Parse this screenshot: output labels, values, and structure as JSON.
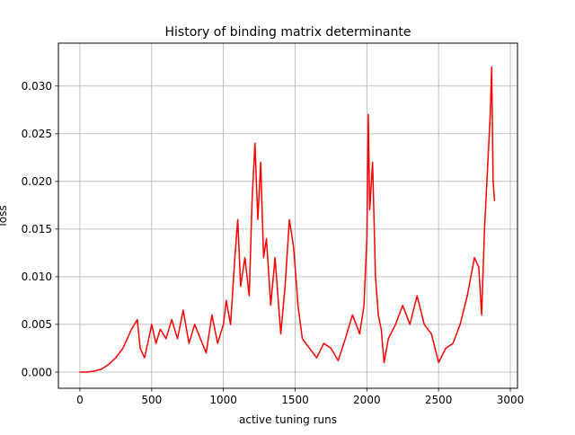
{
  "chart_data": {
    "type": "line",
    "title": "History of binding matrix determinante",
    "xlabel": "active tuning runs",
    "ylabel": "loss",
    "xlim": [
      -150,
      3050
    ],
    "ylim": [
      -0.0017,
      0.0345
    ],
    "xticks": [
      0,
      500,
      1000,
      1500,
      2000,
      2500,
      3000
    ],
    "xtick_labels": [
      "0",
      "500",
      "1000",
      "1500",
      "2000",
      "2500",
      "3000"
    ],
    "yticks": [
      0.0,
      0.005,
      0.01,
      0.015,
      0.02,
      0.025,
      0.03
    ],
    "ytick_labels": [
      "0.000",
      "0.005",
      "0.010",
      "0.015",
      "0.020",
      "0.025",
      "0.030"
    ],
    "grid": true,
    "legend": false,
    "series": [
      {
        "color": "#ff0000",
        "x": [
          0,
          50,
          100,
          150,
          200,
          250,
          300,
          330,
          360,
          400,
          420,
          450,
          480,
          500,
          530,
          560,
          600,
          640,
          680,
          720,
          760,
          800,
          840,
          880,
          920,
          960,
          1000,
          1020,
          1050,
          1080,
          1100,
          1120,
          1150,
          1180,
          1200,
          1220,
          1240,
          1260,
          1280,
          1300,
          1330,
          1360,
          1400,
          1430,
          1460,
          1490,
          1520,
          1550,
          1600,
          1650,
          1700,
          1750,
          1800,
          1850,
          1900,
          1950,
          1980,
          2000,
          2010,
          2020,
          2040,
          2060,
          2080,
          2100,
          2120,
          2150,
          2200,
          2250,
          2300,
          2350,
          2400,
          2450,
          2500,
          2550,
          2600,
          2650,
          2700,
          2750,
          2780,
          2800,
          2820,
          2840,
          2860,
          2870,
          2880,
          2890
        ],
        "y": [
          0.0,
          0.0,
          0.0001,
          0.0003,
          0.0008,
          0.0015,
          0.0025,
          0.0035,
          0.0045,
          0.0055,
          0.0025,
          0.0015,
          0.0035,
          0.005,
          0.003,
          0.0045,
          0.0035,
          0.0055,
          0.0035,
          0.0065,
          0.003,
          0.005,
          0.0035,
          0.002,
          0.006,
          0.003,
          0.005,
          0.0075,
          0.005,
          0.012,
          0.016,
          0.009,
          0.012,
          0.008,
          0.018,
          0.024,
          0.016,
          0.022,
          0.012,
          0.014,
          0.007,
          0.012,
          0.004,
          0.009,
          0.016,
          0.013,
          0.007,
          0.0035,
          0.0025,
          0.0015,
          0.003,
          0.0025,
          0.0012,
          0.0035,
          0.006,
          0.004,
          0.007,
          0.014,
          0.027,
          0.017,
          0.022,
          0.01,
          0.006,
          0.0045,
          0.001,
          0.0035,
          0.005,
          0.007,
          0.005,
          0.008,
          0.005,
          0.004,
          0.001,
          0.0025,
          0.003,
          0.005,
          0.008,
          0.012,
          0.011,
          0.006,
          0.015,
          0.021,
          0.027,
          0.032,
          0.02,
          0.018
        ]
      }
    ]
  }
}
